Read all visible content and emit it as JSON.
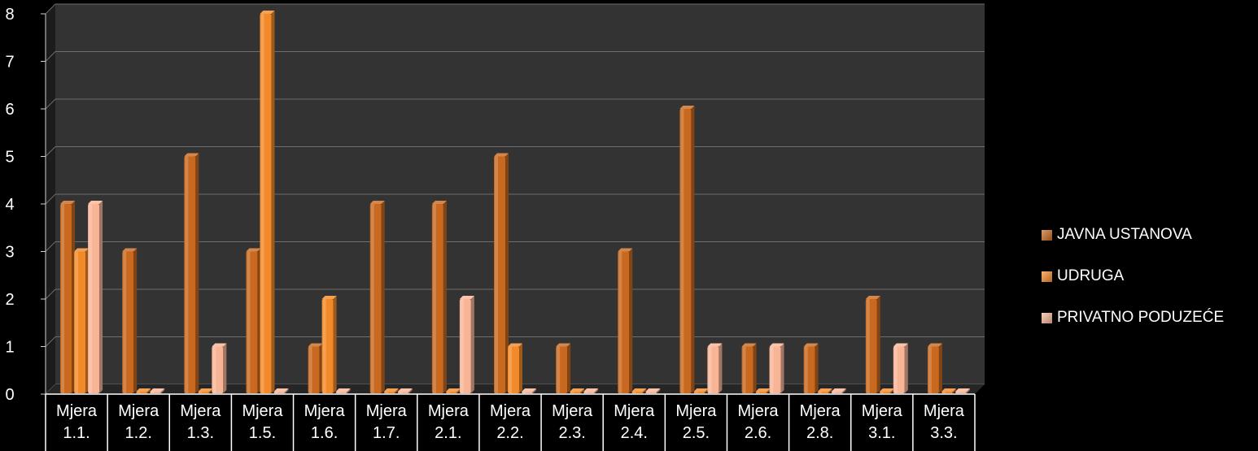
{
  "chart_data": {
    "type": "bar",
    "categories": [
      "Mjera 1.1.",
      "Mjera 1.2.",
      "Mjera 1.3.",
      "Mjera 1.5.",
      "Mjera 1.6.",
      "Mjera 1.7.",
      "Mjera 2.1.",
      "Mjera 2.2.",
      "Mjera 2.3.",
      "Mjera 2.4.",
      "Mjera 2.5.",
      "Mjera 2.6.",
      "Mjera 2.8.",
      "Mjera 3.1.",
      "Mjera 3.3."
    ],
    "category_lines": [
      [
        "Mjera",
        "1.1."
      ],
      [
        "Mjera",
        "1.2."
      ],
      [
        "Mjera",
        "1.3."
      ],
      [
        "Mjera",
        "1.5."
      ],
      [
        "Mjera",
        "1.6."
      ],
      [
        "Mjera",
        "1.7."
      ],
      [
        "Mjera",
        "2.1."
      ],
      [
        "Mjera",
        "2.2."
      ],
      [
        "Mjera",
        "2.3."
      ],
      [
        "Mjera",
        "2.4."
      ],
      [
        "Mjera",
        "2.5."
      ],
      [
        "Mjera",
        "2.6."
      ],
      [
        "Mjera",
        "2.8."
      ],
      [
        "Mjera",
        "3.1."
      ],
      [
        "Mjera",
        "3.3."
      ]
    ],
    "series": [
      {
        "name": "JAVNA USTANOVA",
        "color": "#c8691f",
        "values": [
          4,
          3,
          5,
          3,
          1,
          4,
          4,
          5,
          1,
          3,
          6,
          1,
          1,
          2,
          1
        ]
      },
      {
        "name": "UDRUGA",
        "color": "#f28a2a",
        "values": [
          3,
          0,
          0,
          8,
          2,
          0,
          0,
          1,
          0,
          0,
          0,
          0,
          0,
          0,
          0
        ]
      },
      {
        "name": "PRIVATNO PODUZEĆE",
        "color": "#f7b596",
        "values": [
          4,
          0,
          1,
          0,
          0,
          0,
          2,
          0,
          0,
          0,
          1,
          1,
          0,
          1,
          0
        ]
      }
    ],
    "ylim": [
      0,
      8
    ],
    "yticks": [
      "0",
      "1",
      "2",
      "3",
      "4",
      "5",
      "6",
      "7",
      "8"
    ],
    "grid": true,
    "legend": "right",
    "title": "",
    "xlabel": "",
    "ylabel": ""
  }
}
